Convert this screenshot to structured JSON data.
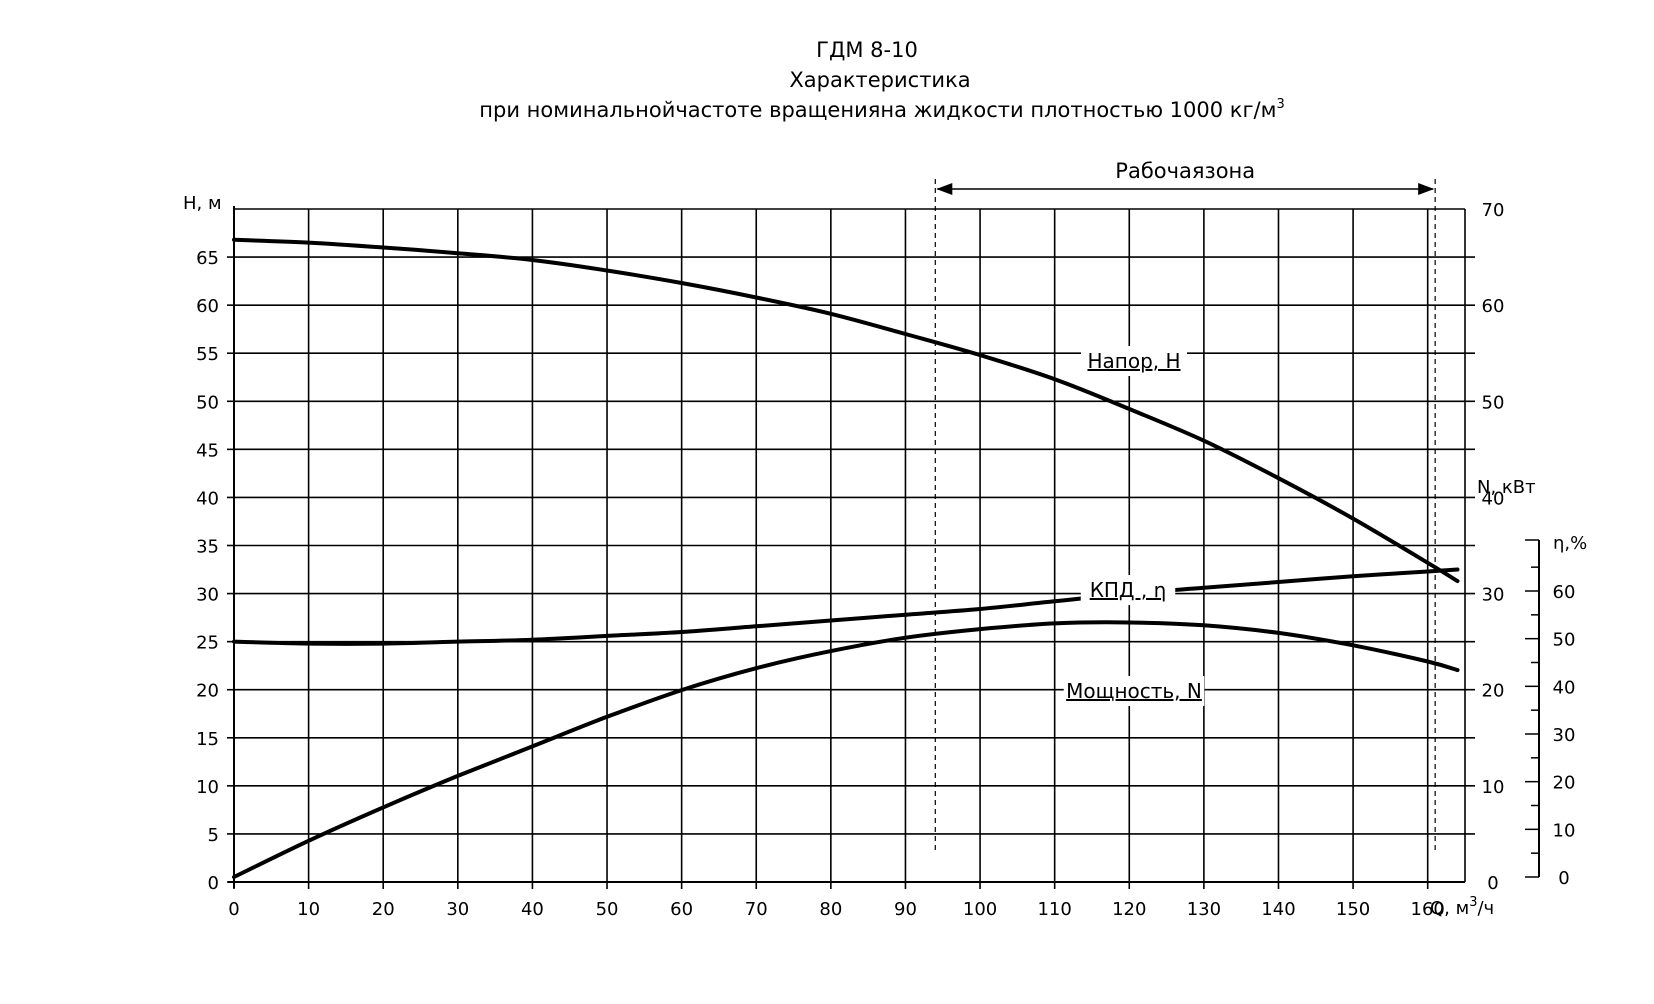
{
  "chart_data": {
    "type": "line",
    "title": "ГДМ 8-10",
    "subtitle_line1": "Характеристика",
    "subtitle_line2": "при номинальнойчастоте вращенияна жидкости плотностью 1000 кг/м",
    "subtitle_sup": "3",
    "xlabel": "Q, м",
    "xlabel_sup": "3",
    "xlabel_suffix": "/ч",
    "ylabel_left": "H, м",
    "ylabel_power": "N, кВт",
    "ylabel_eff": "η,%",
    "xlim": [
      0,
      165
    ],
    "ylim_left": [
      0,
      70
    ],
    "ylim_power": [
      0,
      70
    ],
    "ylim_eff": [
      0,
      70
    ],
    "x_ticks": [
      "0",
      "10",
      "20",
      "30",
      "40",
      "50",
      "60",
      "70",
      "80",
      "90",
      "100",
      "110",
      "120",
      "130",
      "140",
      "150",
      "160"
    ],
    "x_tick_values": [
      0,
      10,
      20,
      30,
      40,
      50,
      60,
      70,
      80,
      90,
      100,
      110,
      120,
      130,
      140,
      150,
      160
    ],
    "y_left_ticks": [
      "0",
      "5",
      "10",
      "15",
      "20",
      "25",
      "30",
      "35",
      "40",
      "45",
      "50",
      "55",
      "60",
      "65"
    ],
    "y_left_tick_values": [
      0,
      5,
      10,
      15,
      20,
      25,
      30,
      35,
      40,
      45,
      50,
      55,
      60,
      65
    ],
    "y_power_ticks": [
      "0",
      "10",
      "20",
      "30",
      "40",
      "50",
      "60",
      "70"
    ],
    "y_power_tick_values": [
      0,
      10,
      20,
      30,
      40,
      50,
      60,
      70
    ],
    "y_eff_ticks": [
      "0",
      "10",
      "20",
      "30",
      "40",
      "50",
      "60"
    ],
    "y_eff_tick_values": [
      0,
      10,
      20,
      30,
      40,
      50,
      60
    ],
    "working_zone": {
      "label": "Рабочаязона",
      "from": 94,
      "to": 161
    },
    "grid": true,
    "series": [
      {
        "name": "Напор, H",
        "label": "Напор, H",
        "axis": "left",
        "x": [
          0,
          10,
          20,
          30,
          40,
          50,
          60,
          70,
          80,
          90,
          100,
          110,
          120,
          130,
          140,
          150,
          160,
          164
        ],
        "values": [
          66.8,
          66.5,
          66.0,
          65.4,
          64.7,
          63.6,
          62.3,
          60.8,
          59.1,
          57.0,
          54.8,
          52.3,
          49.2,
          45.9,
          42.0,
          37.8,
          33.2,
          31.3
        ]
      },
      {
        "name": "КПД, η",
        "label": "КПД , η",
        "axis": "eff",
        "x": [
          0,
          10,
          20,
          30,
          40,
          50,
          60,
          70,
          80,
          90,
          100,
          110,
          120,
          130,
          140,
          150,
          160,
          164
        ],
        "values": [
          0,
          7.6,
          14.6,
          21.2,
          27.4,
          33.6,
          39.2,
          43.8,
          47.4,
          50.2,
          52.0,
          53.2,
          53.4,
          52.8,
          51.2,
          48.6,
          45.2,
          43.4
        ]
      },
      {
        "name": "Мощность, N",
        "label": "Мощность, N",
        "axis": "power",
        "x": [
          0,
          10,
          20,
          30,
          40,
          50,
          60,
          70,
          80,
          90,
          100,
          110,
          120,
          130,
          140,
          150,
          160,
          164
        ],
        "values": [
          25.0,
          24.8,
          24.8,
          25.0,
          25.2,
          25.6,
          26.0,
          26.6,
          27.2,
          27.8,
          28.4,
          29.2,
          30.0,
          30.6,
          31.2,
          31.8,
          32.3,
          32.5
        ]
      }
    ]
  }
}
